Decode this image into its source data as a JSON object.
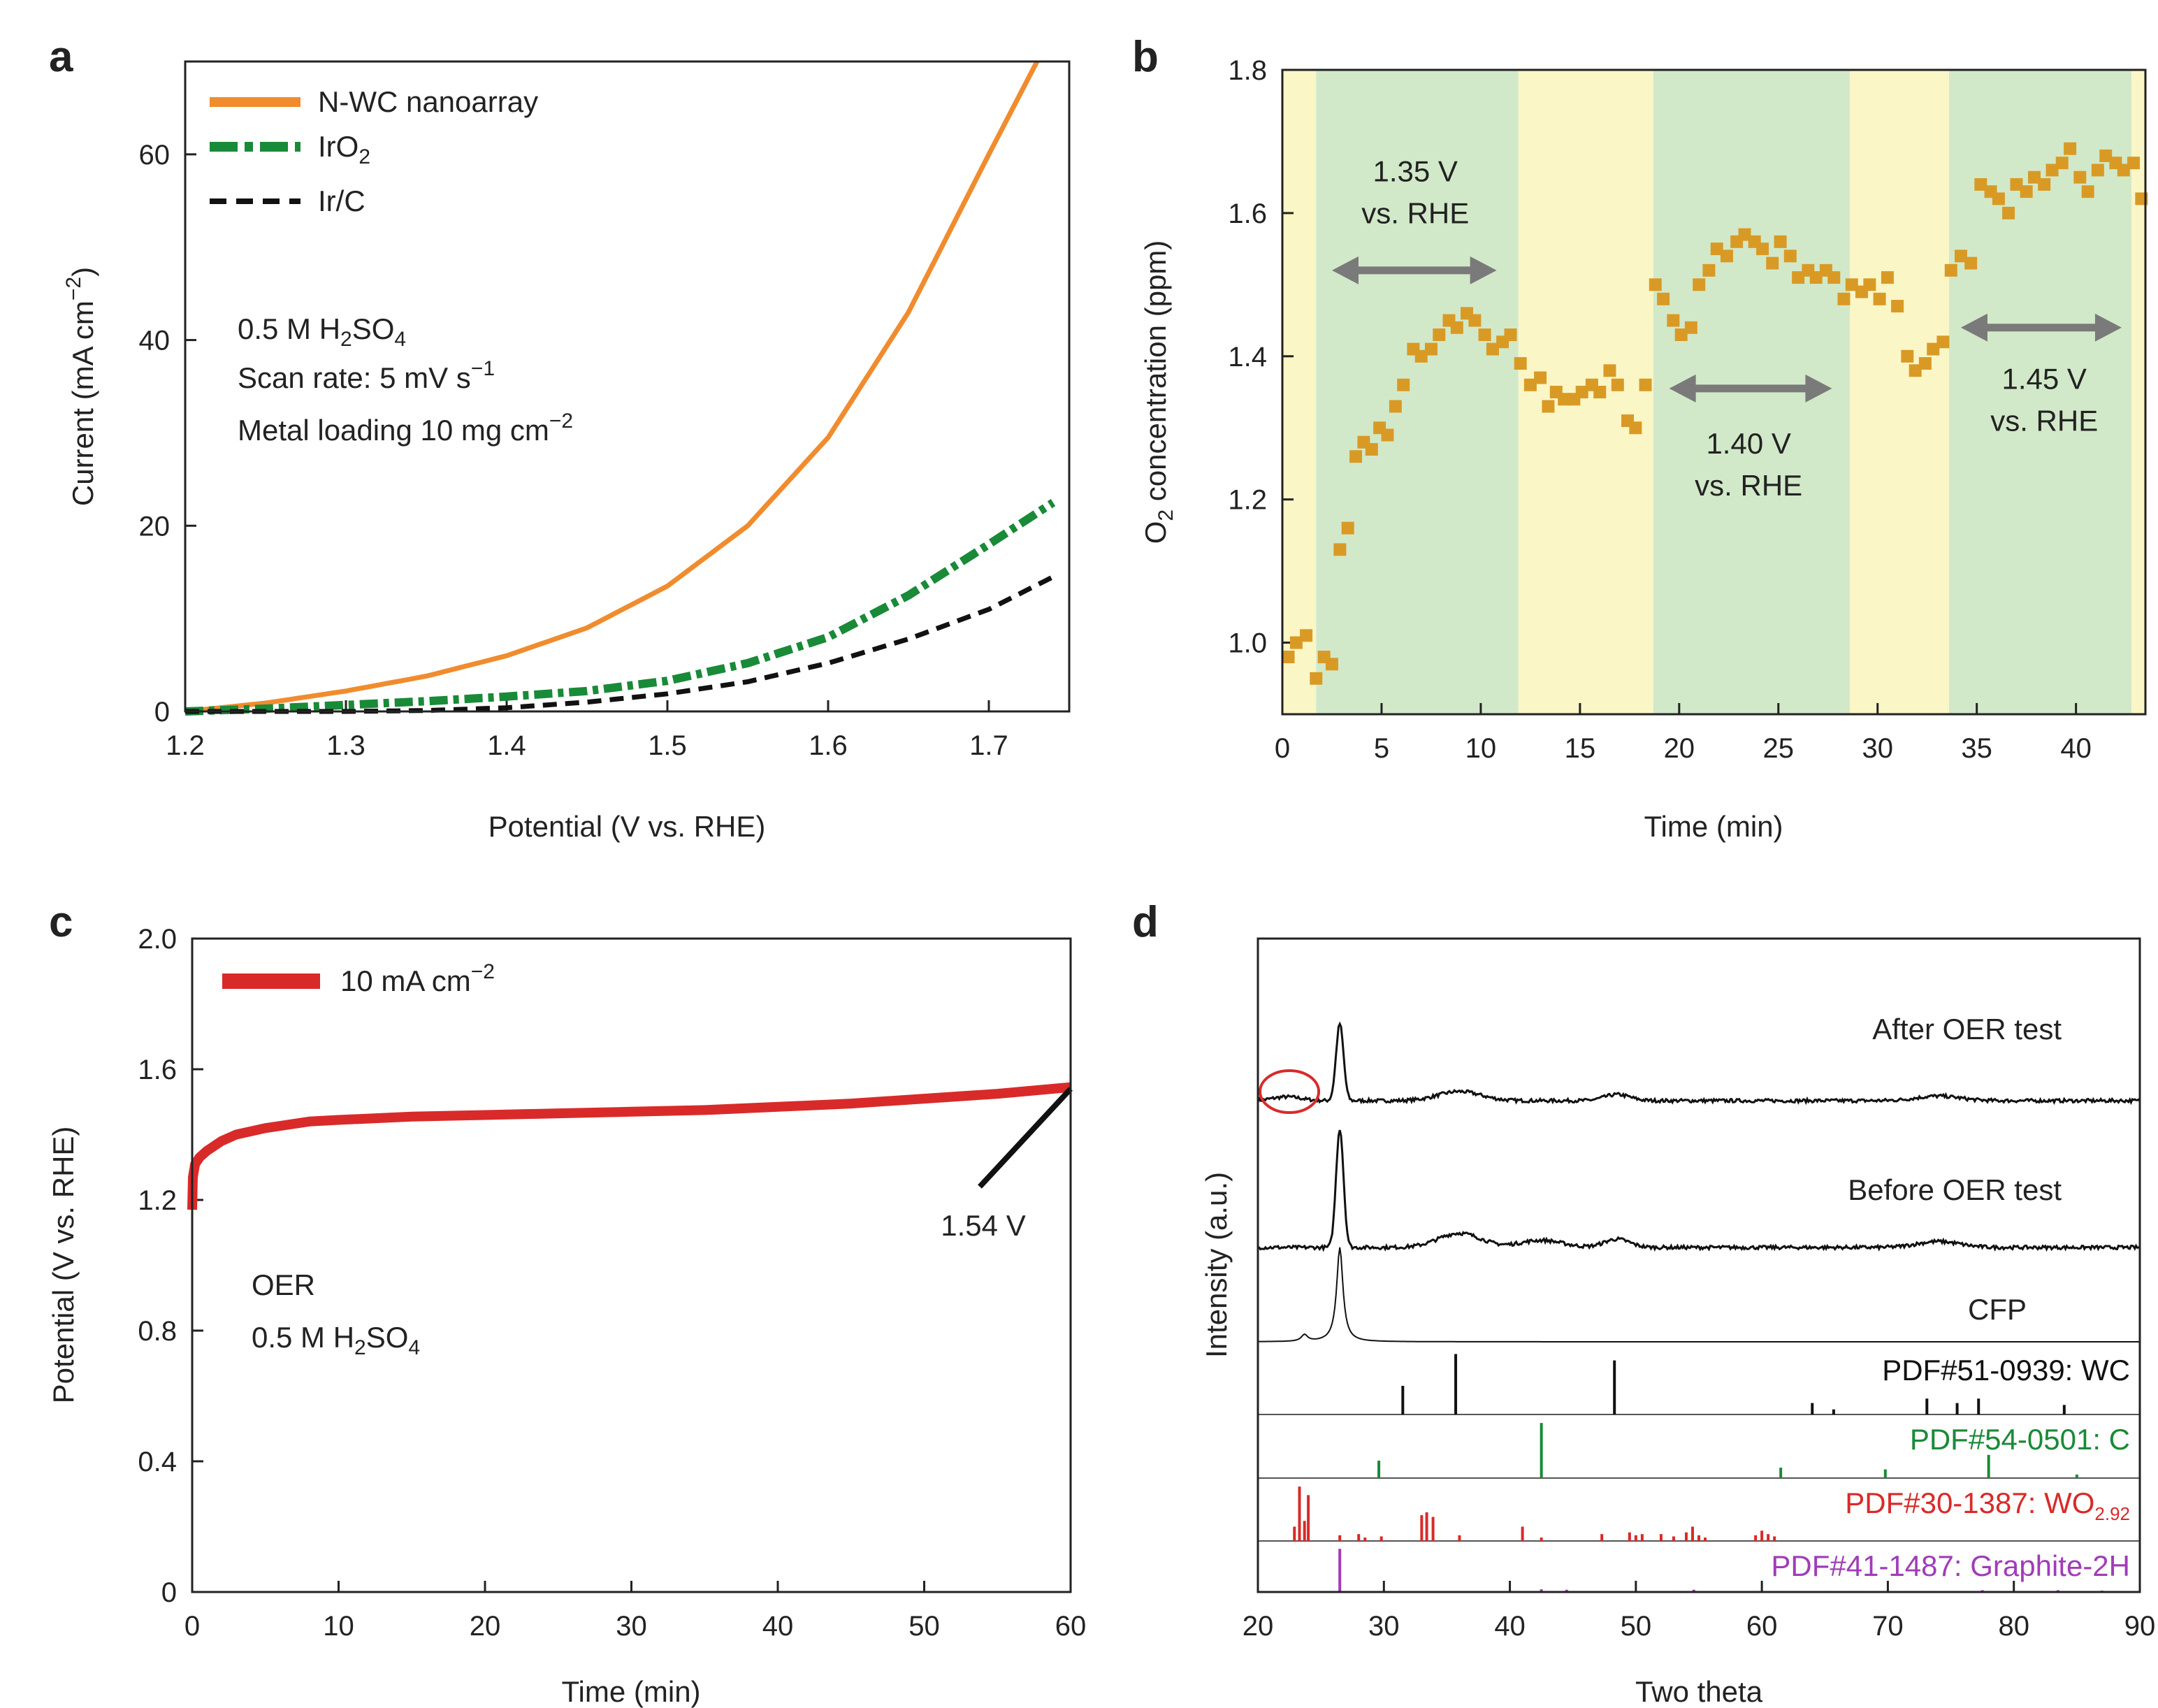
{
  "colors": {
    "orange": "#F08C2E",
    "green": "#198A38",
    "black": "#111111",
    "red": "#D92A2A",
    "yellow_band": "#FBF6C6",
    "green_band": "#D2E9C9",
    "arrow": "#7A7A7A",
    "scatter": "#D99A25",
    "purple": "#A03CB8",
    "circle": "#D92A2A"
  },
  "chart_data": [
    {
      "panel": "a",
      "type": "line",
      "xlabel": "Potential (V vs. RHE)",
      "ylabel": "Current (mA cm",
      "ylabel_sup": "−2",
      "ylabel_end": ")",
      "xlim": [
        1.2,
        1.75
      ],
      "ylim": [
        0,
        70
      ],
      "xticks": [
        1.2,
        1.3,
        1.4,
        1.5,
        1.6,
        1.7
      ],
      "xticklabels": [
        "1.2",
        "1.3",
        "1.4",
        "1.5",
        "1.6",
        "1.7"
      ],
      "yticks": [
        0,
        20,
        40,
        60
      ],
      "yticklabels": [
        "0",
        "20",
        "40",
        "60"
      ],
      "legend": {
        "nwc": "N-WC nanoarray",
        "iro2_base": "IrO",
        "iro2_sub": "2",
        "irc": "Ir/C"
      },
      "conditions": {
        "line1_base": "0.5 M H",
        "line1_sub1": "2",
        "line1_mid": "SO",
        "line1_sub2": "4",
        "line2_base": "Scan rate: 5 mV s",
        "line2_sup": "−1",
        "line3_base": "Metal loading 10 mg cm",
        "line3_sup": "−2"
      },
      "series": [
        {
          "name": "N-WC nanoarray",
          "x": [
            1.2,
            1.25,
            1.3,
            1.35,
            1.4,
            1.45,
            1.5,
            1.55,
            1.6,
            1.65,
            1.7,
            1.73
          ],
          "y": [
            0,
            0.9,
            2.2,
            3.8,
            6.0,
            9.0,
            13.5,
            20.0,
            29.5,
            43.0,
            60.0,
            70.0
          ]
        },
        {
          "name": "IrO2",
          "x": [
            1.2,
            1.25,
            1.3,
            1.35,
            1.4,
            1.45,
            1.5,
            1.55,
            1.6,
            1.65,
            1.7,
            1.74
          ],
          "y": [
            0,
            0.3,
            0.7,
            1.1,
            1.6,
            2.2,
            3.3,
            5.2,
            8.0,
            12.5,
            18.0,
            22.5
          ]
        },
        {
          "name": "Ir/C",
          "x": [
            1.2,
            1.3,
            1.35,
            1.4,
            1.45,
            1.5,
            1.55,
            1.6,
            1.65,
            1.7,
            1.74
          ],
          "y": [
            0,
            0,
            0.1,
            0.4,
            1.0,
            1.9,
            3.2,
            5.2,
            7.8,
            11.0,
            14.5
          ]
        }
      ]
    },
    {
      "panel": "b",
      "type": "scatter",
      "xlabel": "Time (min)",
      "ylabel_pre": "O",
      "ylabel_sub": "2",
      "ylabel_post": " concentration (ppm)",
      "xlim": [
        0,
        43.5
      ],
      "ylim": [
        0.9,
        1.8
      ],
      "xticks": [
        0,
        5,
        10,
        15,
        20,
        25,
        30,
        35,
        40
      ],
      "xticklabels": [
        "0",
        "5",
        "10",
        "15",
        "20",
        "25",
        "30",
        "35",
        "40"
      ],
      "yticks": [
        1.0,
        1.2,
        1.4,
        1.6,
        1.8
      ],
      "yticklabels": [
        "1.0",
        "1.2",
        "1.4",
        "1.6",
        "1.8"
      ],
      "bands": [
        {
          "x0": 0,
          "x1": 1.7,
          "kind": "yellow"
        },
        {
          "x0": 1.7,
          "x1": 11.9,
          "kind": "green"
        },
        {
          "x0": 11.9,
          "x1": 18.7,
          "kind": "yellow"
        },
        {
          "x0": 18.7,
          "x1": 28.6,
          "kind": "green"
        },
        {
          "x0": 28.6,
          "x1": 33.6,
          "kind": "yellow"
        },
        {
          "x0": 33.6,
          "x1": 42.8,
          "kind": "green"
        },
        {
          "x0": 42.8,
          "x1": 43.5,
          "kind": "yellow"
        }
      ],
      "annotations": [
        {
          "line1": "1.35 V",
          "line2": "vs. RHE",
          "x": 6.7,
          "y": 1.61,
          "arrow_x0": 2.5,
          "arrow_x1": 10.8,
          "arrow_y": 1.52
        },
        {
          "line1": "1.40 V",
          "line2": "vs. RHE",
          "x": 23.5,
          "y": 1.23,
          "arrow_x0": 19.5,
          "arrow_x1": 27.7,
          "arrow_y": 1.355
        },
        {
          "line1": "1.45 V",
          "line2": "vs. RHE",
          "x": 38.4,
          "y": 1.32,
          "arrow_x0": 34.2,
          "arrow_x1": 42.3,
          "arrow_y": 1.44
        }
      ],
      "x": [
        0.3,
        0.7,
        1.2,
        1.7,
        2.1,
        2.5,
        2.9,
        3.3,
        3.7,
        4.1,
        4.5,
        4.9,
        5.3,
        5.7,
        6.1,
        6.6,
        7.0,
        7.5,
        7.9,
        8.4,
        8.8,
        9.3,
        9.7,
        10.2,
        10.6,
        11.1,
        11.5,
        12.0,
        12.5,
        13.0,
        13.4,
        13.8,
        14.2,
        14.7,
        15.1,
        15.6,
        16.0,
        16.5,
        16.9,
        17.4,
        17.8,
        18.3,
        18.8,
        19.2,
        19.7,
        20.1,
        20.6,
        21.0,
        21.5,
        21.9,
        22.4,
        22.9,
        23.3,
        23.8,
        24.2,
        24.7,
        25.1,
        25.6,
        26.0,
        26.5,
        26.9,
        27.4,
        27.8,
        28.3,
        28.7,
        29.2,
        29.6,
        30.1,
        30.5,
        31.0,
        31.5,
        31.9,
        32.4,
        32.8,
        33.3,
        33.7,
        34.2,
        34.7,
        35.2,
        35.7,
        36.1,
        36.6,
        37.0,
        37.5,
        37.9,
        38.4,
        38.8,
        39.3,
        39.7,
        40.2,
        40.6,
        41.1,
        41.5,
        42.0,
        42.4,
        42.9,
        43.3
      ],
      "y": [
        0.98,
        1.0,
        1.01,
        0.95,
        0.98,
        0.97,
        1.13,
        1.16,
        1.26,
        1.28,
        1.27,
        1.3,
        1.29,
        1.33,
        1.36,
        1.41,
        1.4,
        1.41,
        1.43,
        1.45,
        1.44,
        1.46,
        1.45,
        1.43,
        1.41,
        1.42,
        1.43,
        1.39,
        1.36,
        1.37,
        1.33,
        1.35,
        1.34,
        1.34,
        1.35,
        1.36,
        1.35,
        1.38,
        1.36,
        1.31,
        1.3,
        1.36,
        1.5,
        1.48,
        1.45,
        1.43,
        1.44,
        1.5,
        1.52,
        1.55,
        1.54,
        1.56,
        1.57,
        1.56,
        1.55,
        1.53,
        1.56,
        1.54,
        1.51,
        1.52,
        1.51,
        1.52,
        1.51,
        1.48,
        1.5,
        1.49,
        1.5,
        1.48,
        1.51,
        1.47,
        1.4,
        1.38,
        1.39,
        1.41,
        1.42,
        1.52,
        1.54,
        1.53,
        1.64,
        1.63,
        1.62,
        1.6,
        1.64,
        1.63,
        1.65,
        1.64,
        1.66,
        1.67,
        1.69,
        1.65,
        1.63,
        1.66,
        1.68,
        1.67,
        1.66,
        1.67,
        1.62
      ]
    },
    {
      "panel": "c",
      "type": "line",
      "xlabel": "Time (min)",
      "ylabel": "Potential (V vs. RHE)",
      "xlim": [
        0,
        60
      ],
      "ylim": [
        0,
        2.0
      ],
      "xticks": [
        0,
        10,
        20,
        30,
        40,
        50,
        60
      ],
      "xticklabels": [
        "0",
        "10",
        "20",
        "30",
        "40",
        "50",
        "60"
      ],
      "yticks": [
        0,
        0.4,
        0.8,
        1.2,
        1.6,
        2.0
      ],
      "yticklabels": [
        "0",
        "0.4",
        "0.8",
        "1.2",
        "1.6",
        "2.0"
      ],
      "legend": {
        "base": "10 mA cm",
        "sup": "−2"
      },
      "conditions": {
        "line1": "OER",
        "line2_base": "0.5 M H",
        "line2_sub1": "2",
        "line2_mid": "SO",
        "line2_sub2": "4"
      },
      "end_label": "1.54 V",
      "end_value": 1.54,
      "series": [
        {
          "name": "10 mA cm-2",
          "x": [
            0,
            0.05,
            0.2,
            0.5,
            1,
            2,
            3,
            5,
            8,
            10,
            15,
            20,
            25,
            30,
            35,
            40,
            45,
            50,
            55,
            60
          ],
          "y": [
            1.17,
            1.27,
            1.31,
            1.33,
            1.35,
            1.38,
            1.4,
            1.42,
            1.44,
            1.445,
            1.455,
            1.46,
            1.465,
            1.47,
            1.475,
            1.485,
            1.495,
            1.51,
            1.525,
            1.545
          ]
        }
      ]
    },
    {
      "panel": "d",
      "type": "line",
      "xlabel": "Two theta",
      "ylabel": "Intensity (a.u.)",
      "xlim": [
        20,
        90
      ],
      "xticks": [
        20,
        30,
        40,
        50,
        60,
        70,
        80,
        90
      ],
      "xticklabels": [
        "20",
        "30",
        "40",
        "50",
        "60",
        "70",
        "80",
        "90"
      ],
      "traces": [
        {
          "name": "After OER test",
          "peaks": [
            [
              26.5,
              1.0,
              0.35
            ],
            [
              36.0,
              0.12,
              2.0
            ],
            [
              48.5,
              0.08,
              1.2
            ],
            [
              74.0,
              0.06,
              2.0
            ]
          ],
          "noise": 0.045,
          "bump": 0.05
        },
        {
          "name": "Before OER test",
          "peaks": [
            [
              26.5,
              1.0,
              0.35
            ],
            [
              36.0,
              0.12,
              2.0
            ],
            [
              42.5,
              0.06,
              2.0
            ],
            [
              48.5,
              0.07,
              1.2
            ],
            [
              74.0,
              0.05,
              2.0
            ]
          ],
          "noise": 0.03,
          "bump": 0.0
        },
        {
          "name": "CFP",
          "peaks": [
            [
              26.5,
              1.0,
              0.3
            ],
            [
              23.7,
              0.07,
              0.3
            ]
          ],
          "noise": 0.0,
          "bump": 0.0
        }
      ],
      "references": [
        {
          "label_base": "PDF#51-0939: WC",
          "label_sub": "",
          "color": "black",
          "lines": [
            [
              31.5,
              0.45
            ],
            [
              35.7,
              0.95
            ],
            [
              48.3,
              0.85
            ],
            [
              64.0,
              0.18
            ],
            [
              65.7,
              0.08
            ],
            [
              73.1,
              0.25
            ],
            [
              75.5,
              0.18
            ],
            [
              77.2,
              0.25
            ],
            [
              84.0,
              0.15
            ]
          ]
        },
        {
          "label_base": "PDF#54-0501: C",
          "label_sub": "",
          "color": "green",
          "lines": [
            [
              29.6,
              0.3
            ],
            [
              42.5,
              0.95
            ],
            [
              61.5,
              0.18
            ],
            [
              69.8,
              0.15
            ],
            [
              78.0,
              0.4
            ],
            [
              85.0,
              0.06
            ]
          ]
        },
        {
          "label_base": "PDF#30-1387: WO",
          "label_sub": "2.92",
          "color": "red",
          "lines": [
            [
              22.9,
              0.25
            ],
            [
              23.3,
              0.95
            ],
            [
              23.7,
              0.35
            ],
            [
              24.0,
              0.8
            ],
            [
              26.5,
              0.1
            ],
            [
              28.0,
              0.12
            ],
            [
              28.5,
              0.06
            ],
            [
              29.8,
              0.08
            ],
            [
              33.0,
              0.45
            ],
            [
              33.4,
              0.5
            ],
            [
              33.9,
              0.42
            ],
            [
              36.0,
              0.1
            ],
            [
              41.0,
              0.25
            ],
            [
              42.5,
              0.06
            ],
            [
              47.3,
              0.12
            ],
            [
              49.5,
              0.15
            ],
            [
              50.0,
              0.1
            ],
            [
              50.5,
              0.12
            ],
            [
              52.0,
              0.12
            ],
            [
              53.0,
              0.08
            ],
            [
              54.0,
              0.15
            ],
            [
              54.5,
              0.25
            ],
            [
              55.0,
              0.1
            ],
            [
              55.5,
              0.06
            ],
            [
              59.5,
              0.1
            ],
            [
              60.0,
              0.18
            ],
            [
              60.5,
              0.12
            ],
            [
              61.0,
              0.08
            ]
          ]
        },
        {
          "label_base": "PDF#41-1487: Graphite-2H",
          "label_sub": "",
          "color": "purple",
          "lines": [
            [
              26.5,
              0.95
            ],
            [
              42.5,
              0.06
            ],
            [
              44.5,
              0.05
            ],
            [
              54.6,
              0.05
            ],
            [
              77.5,
              0.04
            ],
            [
              83.5,
              0.04
            ],
            [
              87.0,
              0.03
            ]
          ]
        }
      ],
      "circle_x": 22.5
    }
  ],
  "panel_labels": {
    "a": "a",
    "b": "b",
    "c": "c",
    "d": "d"
  }
}
